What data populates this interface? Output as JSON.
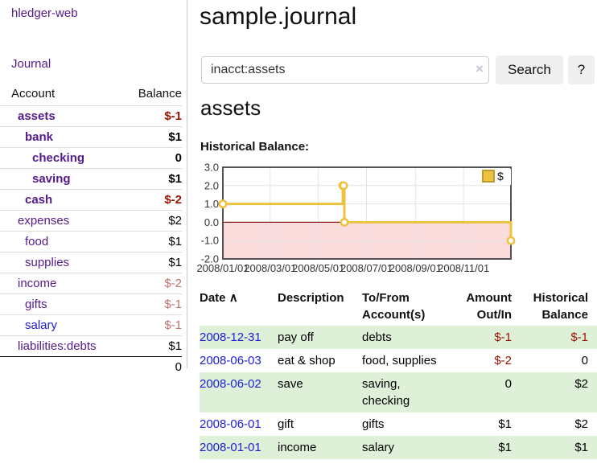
{
  "colors": {
    "link_purple": "#551a8b",
    "link_blue": "#1c1cd9",
    "negative_strong": "#9e1300",
    "negative_soft": "#c0716b",
    "stripe_green": "#dff0d8",
    "chart_line_gold": "#edc240",
    "chart_legend_border": "#bd9b2f",
    "chart_negative_region": "#fadcdc",
    "chart_zero_line": "#941b1b",
    "chart_border": "#545454",
    "chart_grid": "#e3e3e3"
  },
  "sidebar": {
    "brand": "hledger-web",
    "nav_journal": "Journal",
    "table": {
      "account_header": "Account",
      "balance_header": "Balance"
    },
    "accounts": [
      {
        "name": "assets",
        "balance": "$-1",
        "level": 1,
        "bold": true,
        "balance_tone": "neg-strong",
        "link_tone": "purple"
      },
      {
        "name": "bank",
        "balance": "$1",
        "level": 2,
        "bold": true,
        "balance_tone": "plain",
        "link_tone": "purple"
      },
      {
        "name": "checking",
        "balance": "0",
        "level": 3,
        "bold": true,
        "balance_tone": "plain",
        "link_tone": "purple"
      },
      {
        "name": "saving",
        "balance": "$1",
        "level": 3,
        "bold": true,
        "balance_tone": "plain",
        "link_tone": "purple"
      },
      {
        "name": "cash",
        "balance": "$-2",
        "level": 2,
        "bold": true,
        "balance_tone": "neg-strong",
        "link_tone": "purple"
      },
      {
        "name": "expenses",
        "balance": "$2",
        "level": 1,
        "bold": false,
        "balance_tone": "plain",
        "link_tone": "purple"
      },
      {
        "name": "food",
        "balance": "$1",
        "level": 2,
        "bold": false,
        "balance_tone": "plain",
        "link_tone": "purple"
      },
      {
        "name": "supplies",
        "balance": "$1",
        "level": 2,
        "bold": false,
        "balance_tone": "plain",
        "link_tone": "purple"
      },
      {
        "name": "income",
        "balance": "$-2",
        "level": 1,
        "bold": false,
        "balance_tone": "neg-soft",
        "link_tone": "purple"
      },
      {
        "name": "gifts",
        "balance": "$-1",
        "level": 2,
        "bold": false,
        "balance_tone": "neg-soft",
        "link_tone": "purple"
      },
      {
        "name": "salary",
        "balance": "$-1",
        "level": 2,
        "bold": false,
        "balance_tone": "neg-soft",
        "link_tone": "blue"
      },
      {
        "name": "liabilities:debts",
        "balance": "$1",
        "level": 1,
        "bold": false,
        "balance_tone": "plain",
        "link_tone": "purple"
      }
    ],
    "total": "0"
  },
  "header": {
    "title": "sample.journal"
  },
  "search": {
    "value": "inacct:assets",
    "clear_icon": "×",
    "search_button": "Search",
    "help_button": "?"
  },
  "account_page": {
    "title": "assets"
  },
  "chart_data": {
    "type": "line",
    "step": true,
    "title": "Historical Balance:",
    "series": [
      {
        "name": "$",
        "color": "#edc240",
        "points": [
          [
            "2008-01-01",
            1
          ],
          [
            "2008-06-01",
            2
          ],
          [
            "2008-06-02",
            2
          ],
          [
            "2008-06-03",
            0
          ],
          [
            "2008-12-31",
            -1
          ]
        ]
      }
    ],
    "xlim": [
      "2008-01-01",
      "2008-12-31"
    ],
    "ylim": [
      -2,
      3
    ],
    "x_ticks": [
      "2008/01/01",
      "2008/03/01",
      "2008/05/01",
      "2008/07/01",
      "2008/09/01",
      "2008/11/01"
    ],
    "y_ticks": [
      "3.0",
      "2.0",
      "1.0",
      "0.0",
      "-1.0",
      "-2.0"
    ],
    "grid": true,
    "legend_position": "ne",
    "legend_label": "$"
  },
  "register": {
    "headers": [
      {
        "label": "Date",
        "sort_icon": "∧",
        "align": "left"
      },
      {
        "label": "Description",
        "align": "left"
      },
      {
        "label": "To/From Account(s)",
        "align": "left"
      },
      {
        "label": "Amount Out/In",
        "align": "right"
      },
      {
        "label": "Historical Balance",
        "align": "right"
      }
    ],
    "rows": [
      {
        "date": "2008-12-31",
        "description": "pay off",
        "accounts": "debts",
        "amount": "$-1",
        "amount_tone": "neg",
        "balance": "$-1",
        "balance_tone": "neg"
      },
      {
        "date": "2008-06-03",
        "description": "eat & shop",
        "accounts": "food, supplies",
        "amount": "$-2",
        "amount_tone": "neg",
        "balance": "0",
        "balance_tone": "plain"
      },
      {
        "date": "2008-06-02",
        "description": "save",
        "accounts": "saving,\nchecking",
        "amount": "0",
        "amount_tone": "plain",
        "balance": "$2",
        "balance_tone": "plain"
      },
      {
        "date": "2008-06-01",
        "description": "gift",
        "accounts": "gifts",
        "amount": "$1",
        "amount_tone": "plain",
        "balance": "$2",
        "balance_tone": "plain"
      },
      {
        "date": "2008-01-01",
        "description": "income",
        "accounts": "salary",
        "amount": "$1",
        "amount_tone": "plain",
        "balance": "$1",
        "balance_tone": "plain"
      }
    ]
  }
}
